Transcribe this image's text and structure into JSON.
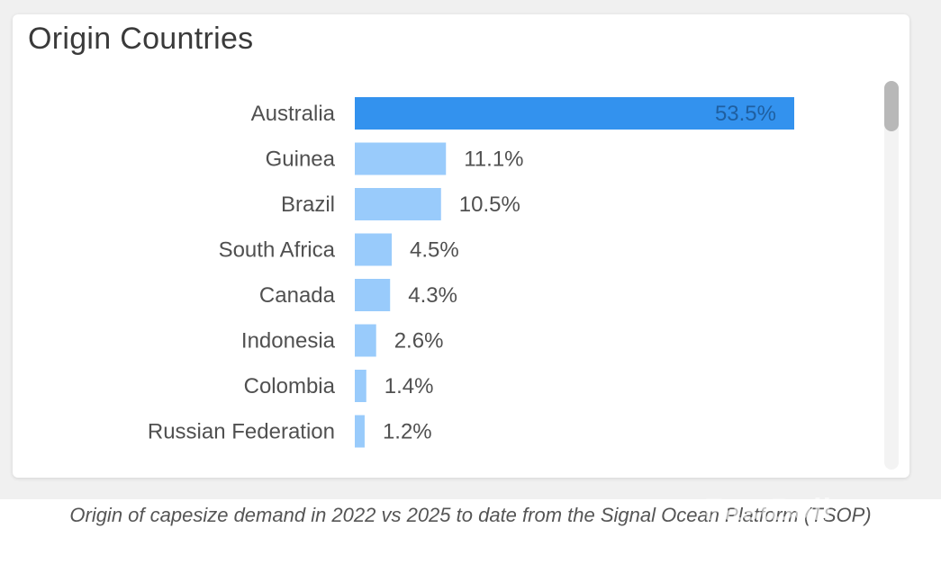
{
  "card": {
    "title": "Origin Countries"
  },
  "chart_data": {
    "type": "bar",
    "orientation": "horizontal",
    "title": "Origin Countries",
    "categories": [
      "Australia",
      "Guinea",
      "Brazil",
      "South Africa",
      "Canada",
      "Indonesia",
      "Colombia",
      "Russian Federation"
    ],
    "values": [
      53.5,
      11.1,
      10.5,
      4.5,
      4.3,
      2.6,
      1.4,
      1.2
    ],
    "labels": [
      "53.5%",
      "11.1%",
      "10.5%",
      "4.5%",
      "4.3%",
      "2.6%",
      "1.4%",
      "1.2%"
    ],
    "unit": "%",
    "highlight_index": 0,
    "colors": {
      "highlight": "#3392ee",
      "default": "#99cbfb",
      "label": "#505050",
      "inside_label": "#1f5fa0"
    }
  },
  "caption": "Origin of capesize demand in 2022 vs 2025 to date from the Signal Ocean Platform (TSOP)",
  "watermark": "FastBull"
}
